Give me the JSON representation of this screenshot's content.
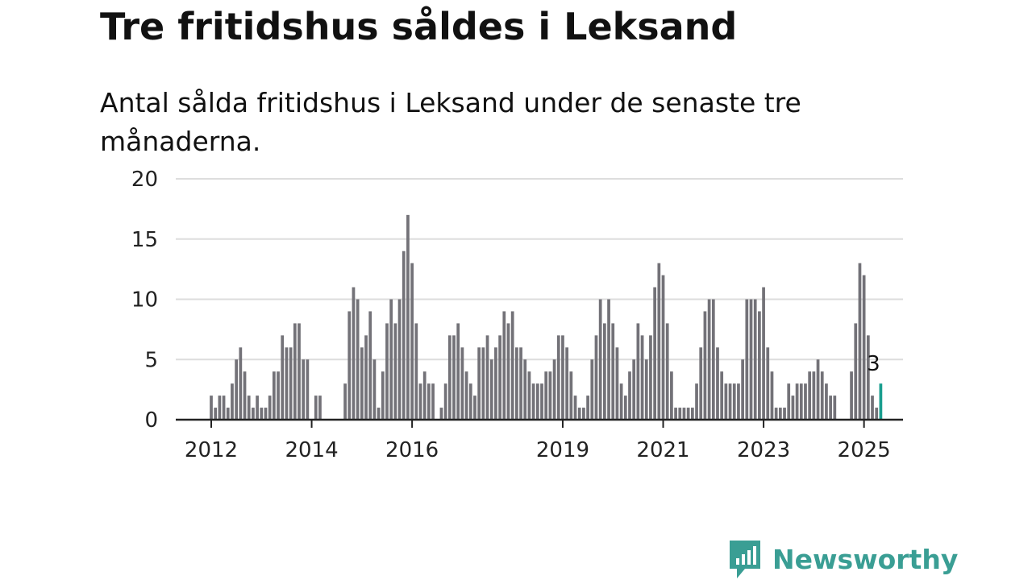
{
  "title": "Tre fritidshus såldes i Leksand",
  "subtitle": "Antal sålda fritidshus i Leksand under de senaste tre månaderna.",
  "brand": {
    "name": "Newsworthy",
    "logo_icon": "newsworthy-logo-icon",
    "color": "#3a9e94"
  },
  "colors": {
    "bar": "#737278",
    "highlight": "#1a9e8f",
    "grid": "#dddddd",
    "axis": "#222222"
  },
  "chart_data": {
    "type": "bar",
    "ylim": [
      0,
      20
    ],
    "yticks": [
      0,
      5,
      10,
      15,
      20
    ],
    "xticks": [
      {
        "label": "2012",
        "x": "2012-01"
      },
      {
        "label": "2014",
        "x": "2014-01"
      },
      {
        "label": "2016",
        "x": "2016-01"
      },
      {
        "label": "2019",
        "x": "2019-01"
      },
      {
        "label": "2021",
        "x": "2021-01"
      },
      {
        "label": "2023",
        "x": "2023-01"
      },
      {
        "label": "2025",
        "x": "2025-01"
      }
    ],
    "grid": true,
    "x_start": "2011-03",
    "values": [
      0,
      0,
      0,
      0,
      0,
      0,
      0,
      0,
      0,
      0,
      2,
      1,
      2,
      2,
      1,
      3,
      5,
      6,
      4,
      2,
      1,
      2,
      1,
      1,
      2,
      4,
      4,
      7,
      6,
      6,
      8,
      8,
      5,
      5,
      0,
      2,
      2,
      0,
      0,
      0,
      0,
      0,
      3,
      9,
      11,
      10,
      6,
      7,
      9,
      5,
      1,
      4,
      8,
      10,
      8,
      10,
      14,
      17,
      13,
      8,
      3,
      4,
      3,
      3,
      0,
      1,
      3,
      7,
      7,
      8,
      6,
      4,
      3,
      2,
      6,
      6,
      7,
      5,
      6,
      7,
      9,
      8,
      9,
      6,
      6,
      5,
      4,
      3,
      3,
      3,
      4,
      4,
      5,
      7,
      7,
      6,
      4,
      2,
      1,
      1,
      2,
      5,
      7,
      10,
      8,
      10,
      8,
      6,
      3,
      2,
      4,
      5,
      8,
      7,
      5,
      7,
      11,
      13,
      12,
      8,
      4,
      1,
      1,
      1,
      1,
      1,
      3,
      6,
      9,
      10,
      10,
      6,
      4,
      3,
      3,
      3,
      3,
      5,
      10,
      10,
      10,
      9,
      11,
      6,
      4,
      1,
      1,
      1,
      3,
      2,
      3,
      3,
      3,
      4,
      4,
      5,
      4,
      3,
      2,
      2,
      0,
      0,
      0,
      4,
      8,
      13,
      12,
      7,
      2,
      1,
      3
    ],
    "highlight_last": true,
    "last_value_label": "3"
  }
}
